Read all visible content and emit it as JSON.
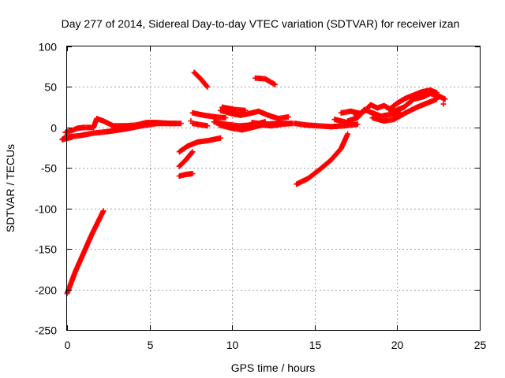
{
  "chart_data": {
    "type": "scatter",
    "title": "Day 277 of 2014, Sidereal Day-to-day VTEC variation (SDTVAR) for receiver izan",
    "xlabel": "GPS time / hours",
    "ylabel": "SDTVAR / TECUs",
    "xlim": [
      0,
      25
    ],
    "ylim": [
      -250,
      100
    ],
    "xticks": [
      0,
      5,
      10,
      15,
      20,
      25
    ],
    "yticks": [
      -250,
      -200,
      -150,
      -100,
      -50,
      0,
      50,
      100
    ],
    "grid": true,
    "marker": "+",
    "marker_color": "#ff0000",
    "segments": [
      [
        [
          0.0,
          -205
        ],
        [
          0.5,
          -178
        ],
        [
          1.0,
          -155
        ],
        [
          1.5,
          -132
        ],
        [
          2.2,
          -103
        ]
      ],
      [
        [
          -0.1,
          -12
        ],
        [
          0.8,
          -10
        ],
        [
          1.6,
          -7
        ],
        [
          2.5,
          -5
        ],
        [
          3.5,
          -2
        ],
        [
          4.5,
          2
        ],
        [
          5.5,
          5
        ],
        [
          6.6,
          5
        ]
      ],
      [
        [
          -0.1,
          -6
        ],
        [
          0.4,
          -3
        ],
        [
          0.6,
          -1
        ],
        [
          1.0,
          0
        ]
      ],
      [
        [
          1.0,
          0
        ],
        [
          1.6,
          0
        ],
        [
          1.8,
          11
        ],
        [
          2.2,
          8
        ],
        [
          2.8,
          2
        ],
        [
          3.5,
          2
        ],
        [
          4.2,
          3
        ],
        [
          4.8,
          6
        ],
        [
          5.5,
          6
        ],
        [
          6.2,
          5
        ],
        [
          6.9,
          5
        ]
      ],
      [
        [
          -0.1,
          -12
        ],
        [
          -0.3,
          -15
        ],
        [
          0.3,
          -12
        ]
      ],
      [
        [
          6.8,
          -60
        ],
        [
          7.2,
          -58
        ],
        [
          7.6,
          -57
        ]
      ],
      [
        [
          6.8,
          -48
        ],
        [
          7.2,
          -40
        ],
        [
          7.6,
          -30
        ]
      ],
      [
        [
          6.8,
          -30
        ],
        [
          7.3,
          -23
        ],
        [
          7.9,
          -18
        ],
        [
          8.6,
          -16
        ],
        [
          9.3,
          -13
        ]
      ],
      [
        [
          7.5,
          8
        ]
      ],
      [
        [
          7.7,
          68
        ],
        [
          8.1,
          60
        ],
        [
          8.5,
          50
        ]
      ],
      [
        [
          7.6,
          18
        ],
        [
          8.3,
          15
        ],
        [
          9.0,
          13
        ],
        [
          9.6,
          12
        ]
      ],
      [
        [
          7.6,
          5
        ],
        [
          8.5,
          2
        ]
      ],
      [
        [
          8.9,
          7
        ],
        [
          9.6,
          4
        ],
        [
          10.4,
          2
        ],
        [
          11.2,
          3
        ],
        [
          12.0,
          4
        ],
        [
          12.8,
          5
        ],
        [
          13.7,
          5
        ]
      ],
      [
        [
          9.3,
          21
        ],
        [
          10.0,
          17
        ],
        [
          10.5,
          15
        ],
        [
          11.0,
          17
        ],
        [
          11.6,
          20
        ],
        [
          12.2,
          15
        ],
        [
          12.8,
          11
        ],
        [
          13.4,
          13
        ]
      ],
      [
        [
          9.2,
          3
        ],
        [
          10.0,
          -1
        ],
        [
          10.6,
          -3
        ],
        [
          11.2,
          0
        ],
        [
          11.8,
          3
        ],
        [
          12.4,
          2
        ],
        [
          13.0,
          4
        ],
        [
          13.6,
          5
        ]
      ],
      [
        [
          9.4,
          25
        ],
        [
          10.2,
          22
        ],
        [
          10.8,
          21
        ]
      ],
      [
        [
          11.4,
          61
        ],
        [
          12.0,
          60
        ],
        [
          12.6,
          53
        ]
      ],
      [
        [
          13.9,
          -70
        ],
        [
          14.6,
          -63
        ],
        [
          15.3,
          -52
        ],
        [
          16.0,
          -40
        ],
        [
          16.6,
          -26
        ],
        [
          17.0,
          -8
        ]
      ],
      [
        [
          13.8,
          5
        ],
        [
          14.5,
          3
        ],
        [
          15.2,
          2
        ],
        [
          16.0,
          1
        ],
        [
          16.8,
          2
        ],
        [
          17.6,
          4
        ]
      ],
      [
        [
          16.2,
          10
        ],
        [
          16.8,
          7
        ],
        [
          17.3,
          5
        ]
      ],
      [
        [
          16.6,
          18
        ],
        [
          17.2,
          20
        ],
        [
          17.8,
          17
        ]
      ],
      [
        [
          17.0,
          8
        ],
        [
          17.6,
          12
        ],
        [
          18.0,
          22
        ],
        [
          18.5,
          18
        ],
        [
          19.0,
          14
        ],
        [
          19.6,
          16
        ],
        [
          20.2,
          18
        ]
      ],
      [
        [
          17.5,
          15
        ],
        [
          18.0,
          20
        ],
        [
          18.4,
          28
        ],
        [
          18.8,
          24
        ],
        [
          19.2,
          27
        ],
        [
          19.8,
          20
        ],
        [
          20.4,
          25
        ],
        [
          21.0,
          35
        ],
        [
          21.6,
          38
        ],
        [
          22.0,
          42
        ],
        [
          22.6,
          38
        ],
        [
          22.9,
          35
        ]
      ],
      [
        [
          18.5,
          12
        ],
        [
          19.2,
          8
        ],
        [
          19.8,
          10
        ],
        [
          20.5,
          18
        ],
        [
          21.2,
          25
        ],
        [
          21.8,
          30
        ],
        [
          22.4,
          35
        ]
      ],
      [
        [
          19.5,
          22
        ],
        [
          20.0,
          30
        ],
        [
          20.5,
          36
        ],
        [
          21.0,
          40
        ],
        [
          21.5,
          44
        ],
        [
          22.0,
          46
        ],
        [
          22.4,
          43
        ]
      ],
      [
        [
          22.8,
          29
        ]
      ],
      [
        [
          11.2,
          6
        ],
        [
          11.6,
          5
        ],
        [
          12.0,
          7
        ]
      ]
    ]
  }
}
